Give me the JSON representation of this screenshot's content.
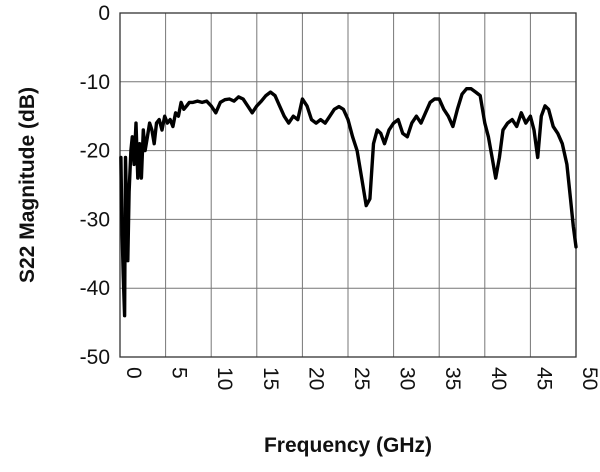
{
  "chart_data": {
    "type": "line",
    "title": "",
    "xlabel": "Frequency (GHz)",
    "ylabel": "S22 Magnitude (dB)",
    "xlim": [
      0,
      50
    ],
    "ylim": [
      -50,
      0
    ],
    "xticks": [
      0,
      5,
      10,
      15,
      20,
      25,
      30,
      35,
      40,
      45,
      50
    ],
    "yticks": [
      0,
      -10,
      -20,
      -30,
      -40,
      -50
    ],
    "grid": true,
    "legend": "none",
    "line_color": "#000000",
    "series": [
      {
        "x": [
          0.1,
          0.2,
          0.35,
          0.5,
          0.6,
          0.75,
          0.85,
          1.0,
          1.2,
          1.35,
          1.55,
          1.75,
          1.95,
          2.15,
          2.35,
          2.55,
          2.75,
          3.0,
          3.25,
          3.5,
          3.75,
          4.0,
          4.3,
          4.6,
          4.9,
          5.2,
          5.5,
          5.8,
          6.1,
          6.4,
          6.7,
          7.0,
          7.3,
          7.6,
          8.0,
          8.5,
          9.0,
          9.5,
          10.0,
          10.5,
          11.0,
          11.5,
          12.0,
          12.5,
          13.0,
          13.5,
          14.0,
          14.5,
          15.0,
          15.5,
          16.0,
          16.5,
          17.0,
          17.5,
          18.0,
          18.5,
          19.0,
          19.5,
          20.0,
          20.5,
          21.0,
          21.5,
          22.0,
          22.5,
          23.0,
          23.5,
          24.0,
          24.5,
          25.0,
          25.5,
          26.0,
          26.5,
          27.0,
          27.4,
          27.8,
          28.2,
          28.6,
          29.0,
          29.5,
          30.0,
          30.5,
          31.0,
          31.5,
          32.0,
          32.5,
          33.0,
          33.5,
          34.0,
          34.5,
          35.0,
          35.5,
          36.0,
          36.5,
          37.0,
          37.5,
          38.0,
          38.5,
          39.0,
          39.5,
          40.0,
          40.4,
          40.8,
          41.2,
          41.6,
          42.0,
          42.5,
          43.0,
          43.5,
          44.0,
          44.5,
          45.0,
          45.4,
          45.8,
          46.2,
          46.6,
          47.0,
          47.5,
          48.0,
          48.5,
          49.0,
          49.4,
          49.7,
          50.0
        ],
        "y": [
          -21,
          -30,
          -38,
          -44,
          -21,
          -30,
          -36,
          -26,
          -20,
          -18,
          -22,
          -16,
          -24,
          -19,
          -24,
          -17,
          -20,
          -18,
          -16,
          -17,
          -19,
          -16,
          -15.5,
          -17,
          -15,
          -16,
          -15.5,
          -16.5,
          -14.5,
          -15,
          -13,
          -14,
          -13.5,
          -13,
          -13,
          -12.8,
          -13,
          -12.8,
          -13.5,
          -14.5,
          -13,
          -12.6,
          -12.5,
          -12.8,
          -12.2,
          -12.5,
          -13.5,
          -14.5,
          -13.5,
          -12.8,
          -12,
          -11.5,
          -12,
          -13.5,
          -15,
          -16,
          -15,
          -15.5,
          -12.5,
          -13.5,
          -15.5,
          -16,
          -15.5,
          -16,
          -15,
          -14,
          -13.6,
          -14,
          -15.5,
          -18,
          -20,
          -24,
          -28,
          -27,
          -19,
          -17,
          -17.5,
          -19,
          -17,
          -16,
          -15.5,
          -17.5,
          -18,
          -16,
          -15,
          -16,
          -14.5,
          -13,
          -12.5,
          -12.5,
          -14,
          -15,
          -16.5,
          -14,
          -11.8,
          -11,
          -11,
          -11.5,
          -12,
          -16,
          -18,
          -21,
          -24,
          -21,
          -17,
          -16,
          -15.5,
          -16.5,
          -14.5,
          -16,
          -15,
          -17,
          -21,
          -15,
          -13.5,
          -14,
          -16.5,
          -17.5,
          -19,
          -22,
          -27,
          -31,
          -34
        ]
      }
    ]
  }
}
